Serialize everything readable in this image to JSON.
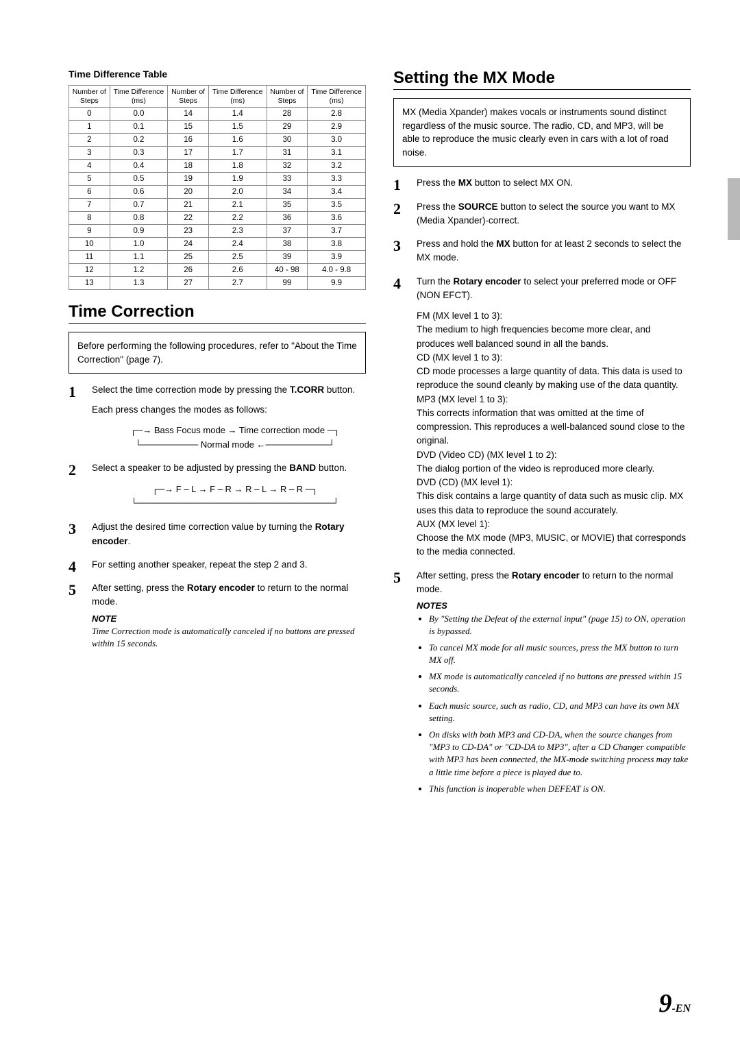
{
  "left": {
    "tableTitle": "Time Difference Table",
    "tableHeaders": [
      "Number of Steps",
      "Time Difference (ms)",
      "Number of Steps",
      "Time Difference (ms)",
      "Number of Steps",
      "Time Difference (ms)"
    ],
    "tableRows": [
      [
        "0",
        "0.0",
        "14",
        "1.4",
        "28",
        "2.8"
      ],
      [
        "1",
        "0.1",
        "15",
        "1.5",
        "29",
        "2.9"
      ],
      [
        "2",
        "0.2",
        "16",
        "1.6",
        "30",
        "3.0"
      ],
      [
        "3",
        "0.3",
        "17",
        "1.7",
        "31",
        "3.1"
      ],
      [
        "4",
        "0.4",
        "18",
        "1.8",
        "32",
        "3.2"
      ],
      [
        "5",
        "0.5",
        "19",
        "1.9",
        "33",
        "3.3"
      ],
      [
        "6",
        "0.6",
        "20",
        "2.0",
        "34",
        "3.4"
      ],
      [
        "7",
        "0.7",
        "21",
        "2.1",
        "35",
        "3.5"
      ],
      [
        "8",
        "0.8",
        "22",
        "2.2",
        "36",
        "3.6"
      ],
      [
        "9",
        "0.9",
        "23",
        "2.3",
        "37",
        "3.7"
      ],
      [
        "10",
        "1.0",
        "24",
        "2.4",
        "38",
        "3.8"
      ],
      [
        "11",
        "1.1",
        "25",
        "2.5",
        "39",
        "3.9"
      ],
      [
        "12",
        "1.2",
        "26",
        "2.6",
        "40 - 98",
        "4.0 - 9.8"
      ],
      [
        "13",
        "1.3",
        "27",
        "2.7",
        "99",
        "9.9"
      ]
    ],
    "sectionTitle": "Time Correction",
    "infobox": "Before performing the following procedures, refer to \"About the Time Correction\" (page 7).",
    "step1a": "Select the time correction mode by pressing the ",
    "step1btn": "T.CORR",
    "step1b": " button.",
    "step1sub": "Each press changes the modes as follows:",
    "cycle1a": "→ Bass Focus mode → Time correction mode",
    "cycle1b": "Normal mode ←",
    "step2a": "Select a speaker to be adjusted by pressing the ",
    "step2btn": "BAND",
    "step2b": " button.",
    "cycle2": "→ F – L → F – R → R – L → R – R",
    "step3a": "Adjust the desired time correction value by turning the ",
    "step3btn": "Rotary encoder",
    "step3b": ".",
    "step4": "For setting another speaker, repeat the step 2 and 3.",
    "step5a": "After setting, press the ",
    "step5btn": "Rotary encoder",
    "step5b": " to return to the normal mode.",
    "noteHead": "NOTE",
    "noteBody": "Time Correction mode is automatically canceled if no buttons are pressed within 15 seconds."
  },
  "right": {
    "sectionTitle": "Setting the MX Mode",
    "infobox": "MX (Media Xpander) makes vocals or instruments sound distinct regardless of the music source. The radio, CD, and MP3, will be able to reproduce the music clearly even in cars with a lot of road noise.",
    "step1a": "Press the ",
    "step1btn": "MX",
    "step1b": " button to select MX ON.",
    "step2a": "Press the ",
    "step2btn": "SOURCE",
    "step2b": " button to select the source you want to MX (Media Xpander)-correct.",
    "step3a": "Press and hold the ",
    "step3btn": "MX",
    "step3b": " button for at least 2 seconds to select the MX mode.",
    "step4a": "Turn the ",
    "step4btn": "Rotary encoder",
    "step4b": " to select your preferred mode or OFF (NON EFCT).",
    "modes": [
      {
        "head": "FM (MX level 1 to 3):",
        "body": "The medium to high frequencies become more clear, and produces well balanced sound in all the bands."
      },
      {
        "head": "CD (MX level 1 to 3):",
        "body": "CD mode processes a large quantity of data. This data is used to reproduce the sound cleanly by making use of the data quantity."
      },
      {
        "head": "MP3 (MX level 1 to 3):",
        "body": "This corrects information that was omitted at the time of compression. This reproduces a well-balanced sound close to the original."
      },
      {
        "head": "DVD (Video CD) (MX level 1 to 2):",
        "body": "The dialog portion of the video is reproduced more clearly."
      },
      {
        "head": "DVD (CD) (MX level 1):",
        "body": "This disk contains a large quantity of data such as music clip. MX uses this data to reproduce the sound accurately."
      },
      {
        "head": "AUX (MX level 1):",
        "body": "Choose the MX mode (MP3, MUSIC, or MOVIE) that corresponds to the media connected."
      }
    ],
    "step5a": "After setting, press the ",
    "step5btn": "Rotary encoder",
    "step5b": " to return to the normal mode.",
    "notesHead": "NOTES",
    "notes": [
      "By \"Setting the Defeat of the external input\" (page 15) to ON, operation is bypassed.",
      "To cancel MX mode for all music sources, press the MX button to turn MX off.",
      "MX mode is automatically canceled if no buttons are pressed within 15 seconds.",
      "Each music source, such as radio, CD, and MP3 can have its own MX setting.",
      "On disks with  both  MP3 and CD-DA, when the source changes  from \"MP3 to CD-DA\" or \"CD-DA to MP3\", after a CD Changer compatible with MP3 has been connected, the MX-mode switching process  may take a little time before a piece is played due to.",
      "This function is inoperable when DEFEAT is ON."
    ]
  },
  "pageNumBig": "9",
  "pageNumSuff": "-EN"
}
